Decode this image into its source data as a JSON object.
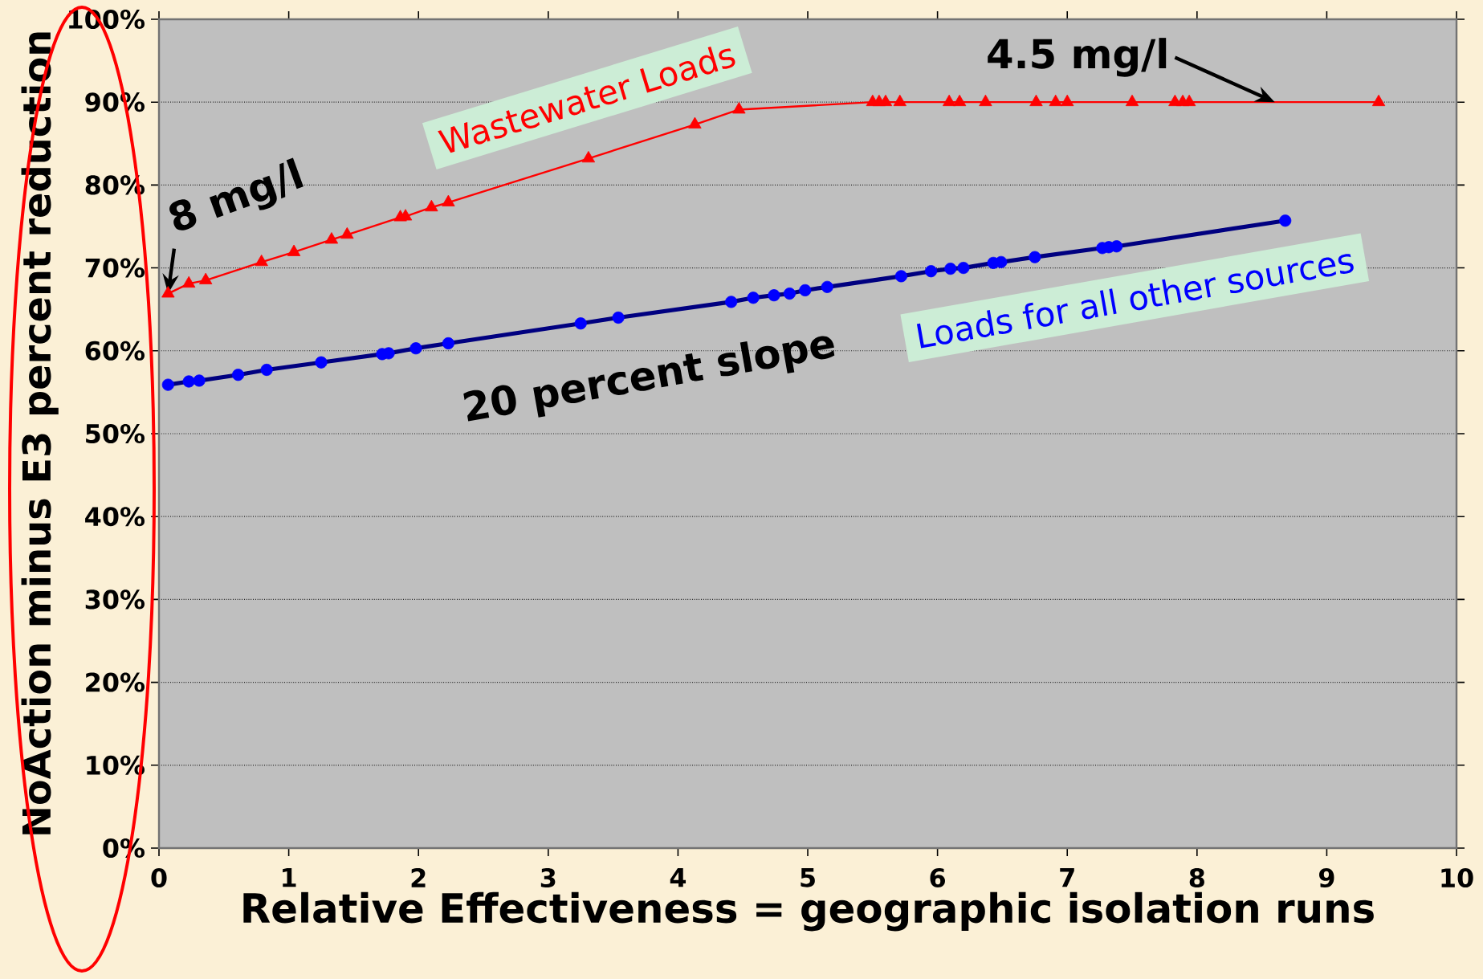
{
  "chart_data": {
    "type": "line",
    "xlabel": "Relative Effectiveness = geographic isolation runs",
    "ylabel": "NoAction minus E3 percent reduction",
    "series": [
      {
        "name": "Wastewater Loads",
        "color": "#ff0000",
        "marker": "triangle",
        "x": [
          0.07,
          0.23,
          0.36,
          0.79,
          1.04,
          1.33,
          1.45,
          1.86,
          1.9,
          2.1,
          2.23,
          3.31,
          4.13,
          4.47,
          5.5,
          5.55,
          5.6,
          5.71,
          6.09,
          6.17,
          6.37,
          6.76,
          6.91,
          7.0,
          7.5,
          7.83,
          7.89,
          7.94,
          9.4
        ],
        "values": [
          66.9,
          68.1,
          68.5,
          70.7,
          71.9,
          73.4,
          74.0,
          76.1,
          76.2,
          77.3,
          77.9,
          83.2,
          87.3,
          89.1,
          90,
          90,
          90,
          90,
          90,
          90,
          90,
          90,
          90,
          90,
          90,
          90,
          90,
          90,
          90
        ]
      },
      {
        "name": "Loads for all other sources",
        "color": "#0000ff",
        "marker": "circle",
        "x": [
          0.07,
          0.23,
          0.31,
          0.61,
          0.83,
          1.25,
          1.72,
          1.77,
          1.98,
          2.23,
          3.25,
          3.54,
          4.41,
          4.58,
          4.74,
          4.86,
          4.98,
          5.15,
          5.72,
          5.95,
          6.1,
          6.2,
          6.43,
          6.49,
          6.75,
          7.27,
          7.32,
          7.38,
          8.68
        ],
        "values": [
          55.9,
          56.3,
          56.4,
          57.1,
          57.7,
          58.6,
          59.6,
          59.7,
          60.3,
          60.9,
          63.3,
          64.0,
          65.9,
          66.4,
          66.7,
          66.9,
          67.3,
          67.7,
          69.0,
          69.6,
          69.9,
          70.0,
          70.6,
          70.7,
          71.3,
          72.4,
          72.5,
          72.6,
          75.7
        ]
      }
    ],
    "xlim": [
      0,
      10
    ],
    "xticks": [
      0,
      1,
      2,
      3,
      4,
      5,
      6,
      7,
      8,
      9,
      10
    ],
    "ylim": [
      0,
      100
    ],
    "yticks": [
      {
        "value": 0,
        "label": "0%"
      },
      {
        "value": 10,
        "label": "10%"
      },
      {
        "value": 20,
        "label": "20%"
      },
      {
        "value": 30,
        "label": "30%"
      },
      {
        "value": 40,
        "label": "40%"
      },
      {
        "value": 50,
        "label": "50%"
      },
      {
        "value": 60,
        "label": "60%"
      },
      {
        "value": 70,
        "label": "70%"
      },
      {
        "value": 80,
        "label": "80%"
      },
      {
        "value": 90,
        "label": "90%"
      },
      {
        "value": 100,
        "label": "100%"
      }
    ],
    "annotations": [
      {
        "text": "8 mg/l",
        "x": 0.07,
        "y": 66.9
      },
      {
        "text": "4.5 mg/l",
        "x": 8.6,
        "y": 90
      },
      "20 percent slope"
    ],
    "grid": "y",
    "line_style": "solid",
    "legend": false
  }
}
